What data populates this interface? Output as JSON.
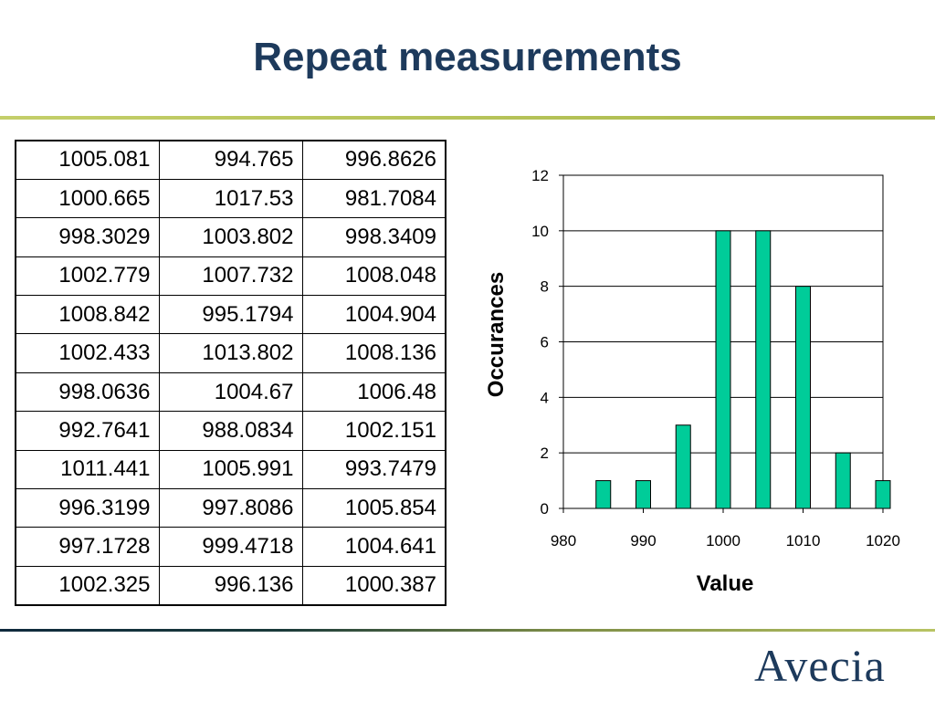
{
  "slide": {
    "title": "Repeat measurements",
    "logo_text": "Avecia"
  },
  "table": {
    "rows": [
      [
        "1005.081",
        "994.765",
        "996.8626"
      ],
      [
        "1000.665",
        "1017.53",
        "981.7084"
      ],
      [
        "998.3029",
        "1003.802",
        "998.3409"
      ],
      [
        "1002.779",
        "1007.732",
        "1008.048"
      ],
      [
        "1008.842",
        "995.1794",
        "1004.904"
      ],
      [
        "1002.433",
        "1013.802",
        "1008.136"
      ],
      [
        "998.0636",
        "1004.67",
        "1006.48"
      ],
      [
        "992.7641",
        "988.0834",
        "1002.151"
      ],
      [
        "1011.441",
        "1005.991",
        "993.7479"
      ],
      [
        "996.3199",
        "997.8086",
        "1005.854"
      ],
      [
        "997.1728",
        "999.4718",
        "1004.641"
      ],
      [
        "1002.325",
        "996.136",
        "1000.387"
      ]
    ]
  },
  "chart_data": {
    "type": "bar",
    "title": "",
    "xlabel": "Value",
    "ylabel": "Occurances",
    "x": [
      985,
      990,
      995,
      1000,
      1005,
      1010,
      1015,
      1020
    ],
    "values": [
      1,
      1,
      3,
      10,
      10,
      8,
      2,
      1
    ],
    "xlim": [
      980,
      1020
    ],
    "ylim": [
      0,
      12
    ],
    "xticks": [
      980,
      990,
      1000,
      1010,
      1020
    ],
    "yticks": [
      0,
      2,
      4,
      6,
      8,
      10,
      12
    ],
    "grid": true,
    "legend": "none",
    "bar_color": "#00cc99",
    "bar_edge_color": "#000000"
  },
  "colors": {
    "title": "#1d3a5c",
    "accent_rule": "#b8c463"
  }
}
